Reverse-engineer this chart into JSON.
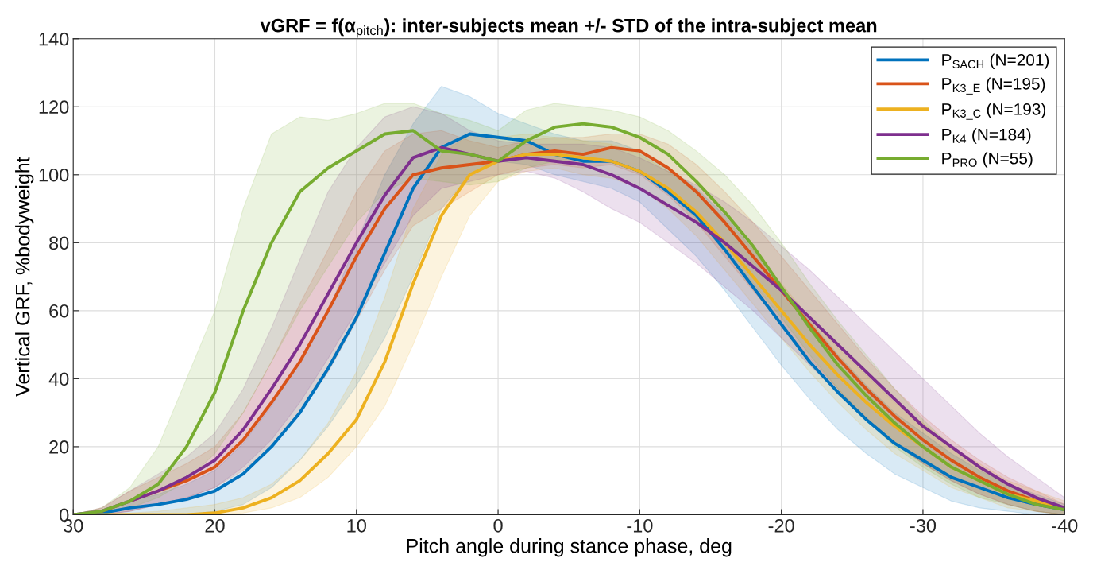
{
  "chart_data": {
    "type": "line",
    "title": "vGRF = f(α$_{pitch}$): inter-subjects mean +/- STD of the intra-subject mean",
    "xlabel": "Pitch angle during stance phase, deg",
    "ylabel": "Vertical GRF, %bodyweight",
    "x": [
      30,
      28,
      26,
      24,
      22,
      20,
      18,
      16,
      14,
      12,
      10,
      8,
      6,
      4,
      2,
      0,
      -2,
      -4,
      -6,
      -8,
      -10,
      -12,
      -14,
      -16,
      -18,
      -20,
      -22,
      -24,
      -26,
      -28,
      -30,
      -32,
      -34,
      -36,
      -38,
      -40
    ],
    "series": [
      {
        "name": "P$_{SACH}$ (N=201)",
        "color": "#0072bd",
        "values": [
          0,
          0.5,
          2,
          3,
          4.5,
          7,
          12,
          20,
          30,
          43,
          58,
          77,
          96,
          108,
          112,
          111,
          110,
          106,
          104,
          104,
          101,
          95,
          88,
          78,
          67,
          56,
          45,
          36,
          28,
          21,
          16,
          11,
          8,
          5,
          3,
          1.5
        ],
        "lower": [
          0,
          0,
          0,
          0,
          0,
          1,
          3,
          8,
          16,
          26,
          38,
          52,
          70,
          90,
          100,
          104,
          103,
          100,
          98,
          96,
          92,
          84,
          76,
          66,
          55,
          44,
          34,
          25,
          18,
          12,
          8,
          4,
          2,
          1,
          0,
          0
        ],
        "upper": [
          0,
          1,
          4,
          6,
          9,
          13,
          21,
          32,
          45,
          60,
          80,
          100,
          115,
          126,
          123,
          118,
          115,
          112,
          110,
          110,
          107,
          102,
          96,
          88,
          78,
          67,
          57,
          47,
          38,
          30,
          24,
          18,
          13,
          9,
          6,
          3
        ]
      },
      {
        "name": "P$_{K3_E}$ (N=195)",
        "color": "#d95319",
        "values": [
          null,
          null,
          4,
          7,
          10,
          14,
          22,
          33,
          45,
          60,
          76,
          90,
          100,
          102,
          103,
          104,
          106,
          107,
          106,
          108,
          107,
          102,
          95,
          86,
          76,
          66,
          56,
          46,
          37,
          29,
          22,
          16,
          11,
          7,
          4,
          1.5
        ],
        "lower": [
          0,
          0,
          1,
          3,
          5,
          8,
          13,
          20,
          30,
          42,
          57,
          72,
          85,
          90,
          95,
          100,
          102,
          103,
          102,
          103,
          100,
          94,
          86,
          76,
          66,
          56,
          46,
          37,
          28,
          21,
          15,
          10,
          6,
          3,
          1,
          0
        ],
        "upper": [
          0,
          2,
          7,
          11,
          15,
          20,
          30,
          45,
          62,
          78,
          95,
          107,
          112,
          113,
          110,
          108,
          110,
          111,
          111,
          112,
          112,
          109,
          103,
          95,
          86,
          76,
          66,
          56,
          46,
          37,
          29,
          22,
          16,
          11,
          7,
          3
        ]
      },
      {
        "name": "P$_{K3_C}$ (N=193)",
        "color": "#edb120",
        "values": [
          0,
          0,
          0,
          0,
          0,
          0.5,
          2,
          5,
          10,
          18,
          28,
          45,
          68,
          88,
          100,
          104,
          106,
          106,
          105,
          104,
          101,
          96,
          89,
          80,
          70,
          60,
          50,
          41,
          33,
          26,
          20,
          14,
          10,
          6,
          4,
          2
        ],
        "lower": [
          0,
          0,
          0,
          0,
          0,
          0,
          0.5,
          2,
          5,
          11,
          20,
          32,
          50,
          70,
          88,
          98,
          101,
          102,
          100,
          99,
          96,
          90,
          82,
          72,
          62,
          52,
          42,
          33,
          25,
          18,
          13,
          8,
          5,
          2,
          1,
          0
        ],
        "upper": [
          0,
          0,
          0.5,
          1,
          2,
          3,
          5,
          9,
          16,
          27,
          42,
          64,
          90,
          106,
          112,
          111,
          112,
          111,
          110,
          109,
          106,
          101,
          95,
          87,
          78,
          68,
          58,
          49,
          41,
          33,
          27,
          20,
          15,
          10,
          7,
          4
        ]
      },
      {
        "name": "P$_{K4}$ (N=184)",
        "color": "#7e2f8e",
        "values": [
          0,
          1,
          4,
          7,
          11,
          16,
          25,
          37,
          50,
          65,
          80,
          94,
          105,
          108,
          106,
          104,
          105,
          104,
          103,
          100,
          96,
          91,
          86,
          80,
          73,
          66,
          58,
          50,
          42,
          34,
          26,
          20,
          14,
          9,
          5,
          2
        ],
        "lower": [
          0,
          0,
          1,
          3,
          5,
          8,
          14,
          22,
          33,
          46,
          60,
          74,
          88,
          96,
          98,
          100,
          101,
          99,
          95,
          90,
          86,
          80,
          74,
          67,
          60,
          52,
          44,
          36,
          28,
          21,
          15,
          10,
          6,
          3,
          1,
          0
        ],
        "upper": [
          0,
          2,
          7,
          12,
          17,
          24,
          37,
          55,
          75,
          95,
          108,
          117,
          120,
          118,
          113,
          110,
          109,
          109,
          109,
          108,
          105,
          101,
          97,
          92,
          86,
          79,
          72,
          64,
          56,
          48,
          40,
          32,
          24,
          17,
          11,
          5
        ]
      },
      {
        "name": "P$_{PRO}$ (N=55)",
        "color": "#77ac30",
        "values": [
          0,
          1,
          4,
          9,
          20,
          36,
          60,
          80,
          95,
          102,
          107,
          112,
          113,
          107,
          106,
          104,
          110,
          114,
          115,
          114,
          111,
          106,
          98,
          89,
          79,
          67,
          55,
          44,
          35,
          27,
          20,
          14,
          10,
          6,
          3,
          1.5
        ],
        "lower": [
          0,
          0,
          2,
          5,
          10,
          18,
          30,
          45,
          60,
          73,
          86,
          95,
          99,
          98,
          97,
          98,
          102,
          104,
          105,
          104,
          101,
          95,
          87,
          78,
          68,
          58,
          47,
          37,
          28,
          20,
          14,
          9,
          5,
          3,
          1,
          0
        ],
        "upper": [
          0,
          2,
          8,
          20,
          40,
          60,
          90,
          112,
          117,
          116,
          118,
          121,
          121,
          118,
          116,
          113,
          119,
          121,
          120,
          119,
          117,
          113,
          107,
          100,
          91,
          80,
          68,
          57,
          47,
          37,
          28,
          20,
          14,
          9,
          5,
          2
        ]
      }
    ],
    "xlim": [
      30,
      -40
    ],
    "xticks": [
      30,
      20,
      10,
      0,
      -10,
      -20,
      -30,
      -40
    ],
    "ylim": [
      0,
      140
    ],
    "yticks": [
      0,
      20,
      40,
      60,
      80,
      100,
      120,
      140
    ],
    "grid": true,
    "legend": "top right",
    "marker": "none",
    "line_style": "solid"
  }
}
